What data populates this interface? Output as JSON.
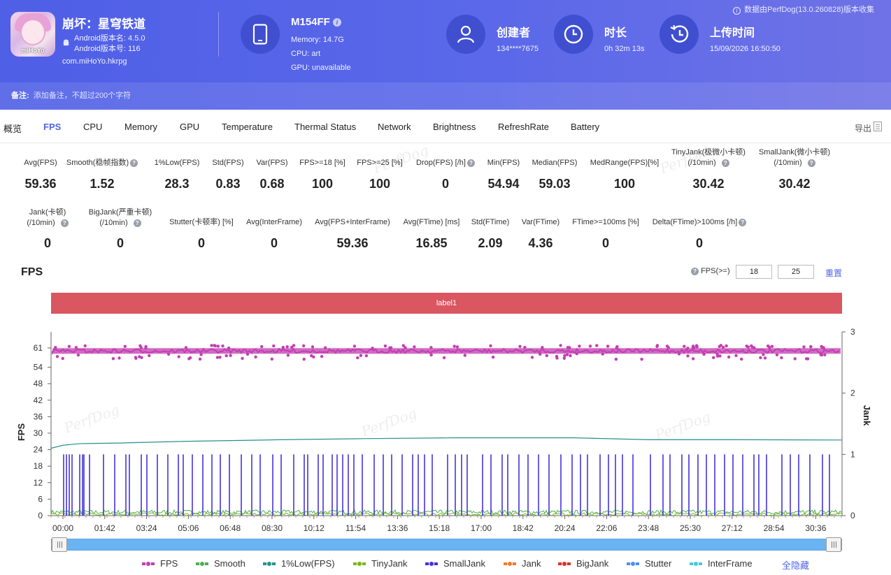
{
  "header": {
    "collect_note": "数据由PerfDog(13.0.260828)版本收集",
    "app": {
      "name": "崩坏：星穹铁道",
      "version_name": "Android版本名: 4.5.0",
      "version_code": "Android版本号: 116",
      "package": "com.miHoYo.hkrpg",
      "icon_text": "miHoYo"
    },
    "device": {
      "name": "M154FF",
      "memory": "Memory: 14.7G",
      "cpu": "CPU: art",
      "gpu": "GPU: unavailable"
    },
    "creator": {
      "title": "创建者",
      "value": "134****7675"
    },
    "duration": {
      "title": "时长",
      "value": "0h 32m 13s"
    },
    "upload": {
      "title": "上传时间",
      "value": "15/09/2026 16:50:50"
    },
    "remark": {
      "label": "备注:",
      "placeholder": "添加备注，不超过200个字符"
    }
  },
  "tabs": [
    "概览",
    "FPS",
    "CPU",
    "Memory",
    "GPU",
    "Temperature",
    "Thermal Status",
    "Network",
    "Brightness",
    "RefreshRate",
    "Battery"
  ],
  "active_tab": "FPS",
  "export_label": "导出",
  "metrics_row1": [
    {
      "label": "Avg(FPS)",
      "value": "59.36"
    },
    {
      "label": "Smooth(稳帧指数)",
      "value": "1.52",
      "help": true
    },
    {
      "label": "1%Low(FPS)",
      "value": "28.3"
    },
    {
      "label": "Std(FPS)",
      "value": "0.83"
    },
    {
      "label": "Var(FPS)",
      "value": "0.68"
    },
    {
      "label": "FPS>=18 [%]",
      "value": "100"
    },
    {
      "label": "FPS>=25 [%]",
      "value": "100"
    },
    {
      "label": "Drop(FPS) [/h]",
      "value": "0",
      "help": true
    },
    {
      "label": "Min(FPS)",
      "value": "54.94"
    },
    {
      "label": "Median(FPS)",
      "value": "59.03"
    },
    {
      "label": "MedRange(FPS)[%]",
      "value": "100"
    },
    {
      "label": "TinyJank(极微小卡顿)",
      "label2": "(/10min)",
      "value": "30.42",
      "help": true
    },
    {
      "label": "SmallJank(微小卡顿)",
      "label2": "(/10min)",
      "value": "30.42",
      "help": true
    }
  ],
  "metrics_row2": [
    {
      "label": "Jank(卡顿)",
      "label2": "(/10min)",
      "value": "0",
      "help": true
    },
    {
      "label": "BigJank(严重卡顿)",
      "label2": "(/10min)",
      "value": "0",
      "help": true
    },
    {
      "label": "Stutter(卡顿率) [%]",
      "value": "0"
    },
    {
      "label": "Avg(InterFrame)",
      "value": "0"
    },
    {
      "label": "Avg(FPS+InterFrame)",
      "value": "59.36"
    },
    {
      "label": "Avg(FTime) [ms]",
      "value": "16.85"
    },
    {
      "label": "Std(FTime)",
      "value": "2.09"
    },
    {
      "label": "Var(FTime)",
      "value": "4.36"
    },
    {
      "label": "FTime>=100ms [%]",
      "value": "0"
    },
    {
      "label": "Delta(FTime)>100ms [/h]",
      "value": "0",
      "help": true
    }
  ],
  "watermark": "PerfDog",
  "chart_section": {
    "title": "FPS",
    "filter_label": "FPS(>=)",
    "threshold1": "18",
    "threshold2": "25",
    "reset_label": "重置",
    "label_bar": "label1"
  },
  "chart_data": {
    "type": "line",
    "ylabel": "FPS",
    "y2label": "Jank",
    "y_ticks": [
      0,
      6,
      12,
      18,
      24,
      30,
      36,
      42,
      48,
      54,
      61
    ],
    "y2_ticks": [
      0,
      1,
      2,
      3
    ],
    "x_ticks": [
      "00:00",
      "01:42",
      "03:24",
      "05:06",
      "06:48",
      "08:30",
      "10:12",
      "11:54",
      "13:36",
      "15:18",
      "17:00",
      "18:42",
      "20:24",
      "22:06",
      "23:48",
      "25:30",
      "27:12",
      "28:54",
      "30:36"
    ],
    "duration_sec": 1933,
    "series": [
      {
        "name": "FPS",
        "color": "#c23fb0",
        "typical": 59.9,
        "dip_min": 54.9
      },
      {
        "name": "Smooth",
        "color": "#4caf50"
      },
      {
        "name": "1%Low(FPS)",
        "color": "#26918a",
        "start": 24.5,
        "plateau": 28.3,
        "end": 27.5
      },
      {
        "name": "TinyJank",
        "color": "#7cb518"
      },
      {
        "name": "SmallJank",
        "color": "#4433dd",
        "spike_value": 1
      },
      {
        "name": "Jank",
        "color": "#f07c2a"
      },
      {
        "name": "BigJank",
        "color": "#d8322c"
      },
      {
        "name": "Stutter",
        "color": "#4e8ff0"
      },
      {
        "name": "InterFrame",
        "color": "#48c9dc"
      }
    ],
    "hide_all_label": "全隐藏"
  }
}
